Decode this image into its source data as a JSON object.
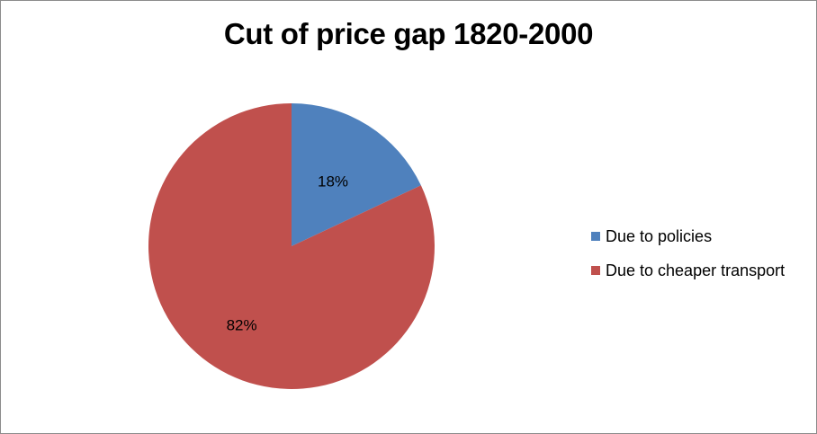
{
  "chart_data": {
    "type": "pie",
    "title": "Cut of price gap 1820-2000",
    "slices": [
      {
        "label": "Due to policies",
        "value": 18,
        "display": "18%",
        "color": "#4f81bd"
      },
      {
        "label": "Due to cheaper transport",
        "value": 82,
        "display": "82%",
        "color": "#c0504d"
      }
    ],
    "legend_position": "right"
  }
}
